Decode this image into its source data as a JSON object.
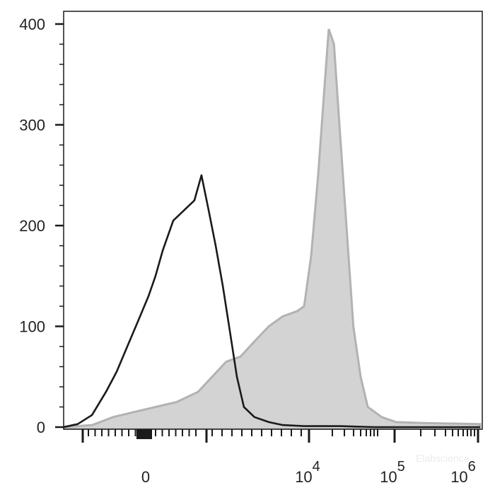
{
  "chart_data": {
    "type": "area",
    "title": "",
    "xlabel": "",
    "ylabel": "",
    "x_scale": "logicle",
    "ylim": [
      0,
      400
    ],
    "xlim": [
      -1100,
      1050000
    ],
    "y_ticks": [
      "0",
      "100",
      "200",
      "300",
      "400"
    ],
    "x_tick_labels": [
      {
        "label": "0",
        "base": "",
        "exp": ""
      },
      {
        "label": "",
        "base": "10",
        "exp": "4"
      },
      {
        "label": "",
        "base": "10",
        "exp": "5"
      },
      {
        "label": "",
        "base": "10",
        "exp": "6"
      }
    ],
    "grid": false,
    "legend": "none",
    "series": [
      {
        "style": "filled",
        "fill": "#d3d3d3",
        "stroke": "#b2b2b2",
        "x": [
          -1086,
          -481,
          -237,
          -74,
          64,
          225,
          462,
          700,
          1043,
          1548,
          2266,
          3351,
          4909,
          7245,
          8779,
          10620,
          12838,
          15057,
          17157,
          19753,
          22939,
          27730,
          33512,
          40828,
          49560,
          72452,
          106908,
          231044,
          1050000
        ],
        "y": [
          0,
          2,
          10,
          15,
          20,
          25,
          35,
          50,
          65,
          70,
          85,
          100,
          110,
          115,
          120,
          170,
          250,
          330,
          395,
          380,
          300,
          200,
          100,
          50,
          20,
          10,
          5,
          4,
          3
        ]
      },
      {
        "style": "line",
        "stroke": "#1a1a1a",
        "x": [
          -1086,
          -730,
          -481,
          -307,
          -206,
          -123,
          -50,
          18,
          64,
          113,
          194,
          292,
          413,
          512,
          633,
          774,
          948,
          1154,
          1400,
          1697,
          2266,
          3351,
          4909,
          8779,
          22939,
          60000,
          1050000
        ],
        "y": [
          0,
          3,
          12,
          35,
          55,
          80,
          105,
          130,
          150,
          175,
          205,
          215,
          225,
          250,
          215,
          180,
          140,
          95,
          50,
          20,
          10,
          5,
          2,
          1,
          1,
          0,
          0
        ]
      }
    ],
    "colors": {
      "axis": "#1a1a1a"
    },
    "watermark": "Elabscience"
  }
}
